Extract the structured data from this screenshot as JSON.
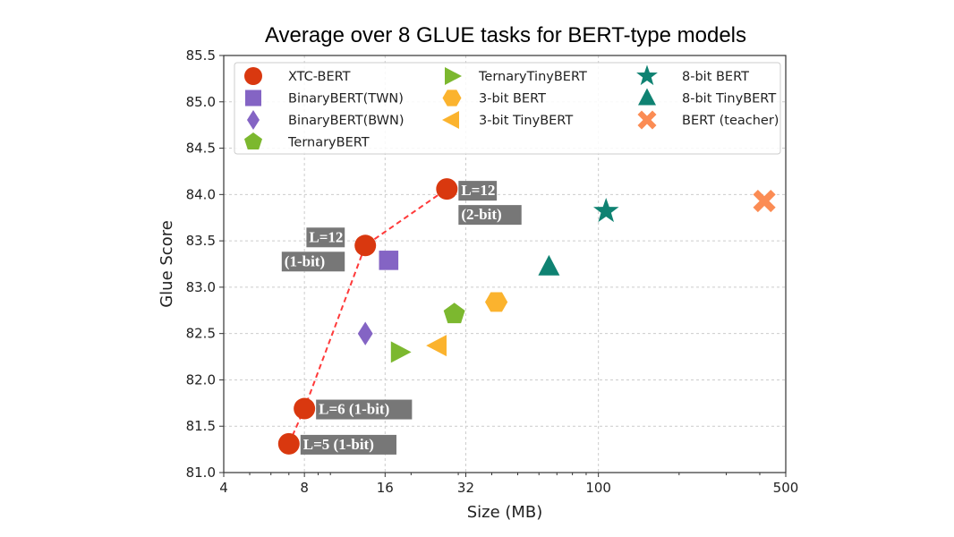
{
  "chart_data": {
    "type": "scatter",
    "title": "Average over 8 GLUE tasks for BERT-type models",
    "xlabel": "Size (MB)",
    "ylabel": "Glue Score",
    "xscale": "log",
    "xlim": [
      4,
      500
    ],
    "ylim": [
      81.0,
      85.5
    ],
    "xticks": [
      4,
      8,
      16,
      32,
      100,
      500
    ],
    "xtick_labels": [
      "4",
      "8",
      "16",
      "32",
      "100",
      "500"
    ],
    "yticks": [
      81.0,
      81.5,
      82.0,
      82.5,
      83.0,
      83.5,
      84.0,
      84.5,
      85.0,
      85.5
    ],
    "ytick_labels": [
      "81.0",
      "81.5",
      "82.0",
      "82.5",
      "83.0",
      "83.5",
      "84.0",
      "84.5",
      "85.0",
      "85.5"
    ],
    "grid": true,
    "legend_placement": "top",
    "series": [
      {
        "name": "XTC-BERT",
        "marker": "circle",
        "color": "#d9380f",
        "line": "dashed",
        "line_color": "#ff3a3a",
        "points": [
          {
            "x": 7.0,
            "y": 81.31
          },
          {
            "x": 8.0,
            "y": 81.69
          },
          {
            "x": 13.5,
            "y": 83.45
          },
          {
            "x": 27.2,
            "y": 84.06
          }
        ]
      },
      {
        "name": "BinaryBERT(TWN)",
        "marker": "square",
        "color": "#8464c4",
        "points": [
          {
            "x": 16.5,
            "y": 83.29
          }
        ]
      },
      {
        "name": "BinaryBERT(BWN)",
        "marker": "diamond",
        "color": "#8464c4",
        "points": [
          {
            "x": 13.5,
            "y": 82.5
          }
        ]
      },
      {
        "name": "TernaryBERT",
        "marker": "pentagon",
        "color": "#7cb82f",
        "points": [
          {
            "x": 29.0,
            "y": 82.71
          }
        ]
      },
      {
        "name": "TernaryTinyBERT",
        "marker": "triangle-right",
        "color": "#7cb82f",
        "points": [
          {
            "x": 18.1,
            "y": 82.3
          }
        ]
      },
      {
        "name": "3-bit BERT",
        "marker": "hexagon",
        "color": "#fbb32e",
        "points": [
          {
            "x": 41.6,
            "y": 82.84
          }
        ]
      },
      {
        "name": "3-bit TinyBERT",
        "marker": "triangle-left",
        "color": "#fbb32e",
        "points": [
          {
            "x": 25.2,
            "y": 82.37
          }
        ]
      },
      {
        "name": "8-bit BERT",
        "marker": "star",
        "color": "#0f8272",
        "points": [
          {
            "x": 106.8,
            "y": 83.82
          }
        ]
      },
      {
        "name": "8-bit TinyBERT",
        "marker": "triangle-up",
        "color": "#0f8272",
        "points": [
          {
            "x": 65.4,
            "y": 83.22
          }
        ]
      },
      {
        "name": "BERT (teacher)",
        "marker": "x",
        "color": "#fb8c54",
        "points": [
          {
            "x": 416,
            "y": 83.93
          }
        ]
      }
    ],
    "annotations": [
      {
        "lines": [
          "L=5 (1-bit)"
        ],
        "x": 7.0,
        "y": 81.31
      },
      {
        "lines": [
          "L=6 (1-bit)"
        ],
        "x": 8.0,
        "y": 81.69
      },
      {
        "lines": [
          "L=12",
          "(1-bit)"
        ],
        "x": 13.5,
        "y": 83.45
      },
      {
        "lines": [
          "L=12",
          "(2-bit)"
        ],
        "x": 27.2,
        "y": 84.06
      }
    ]
  }
}
